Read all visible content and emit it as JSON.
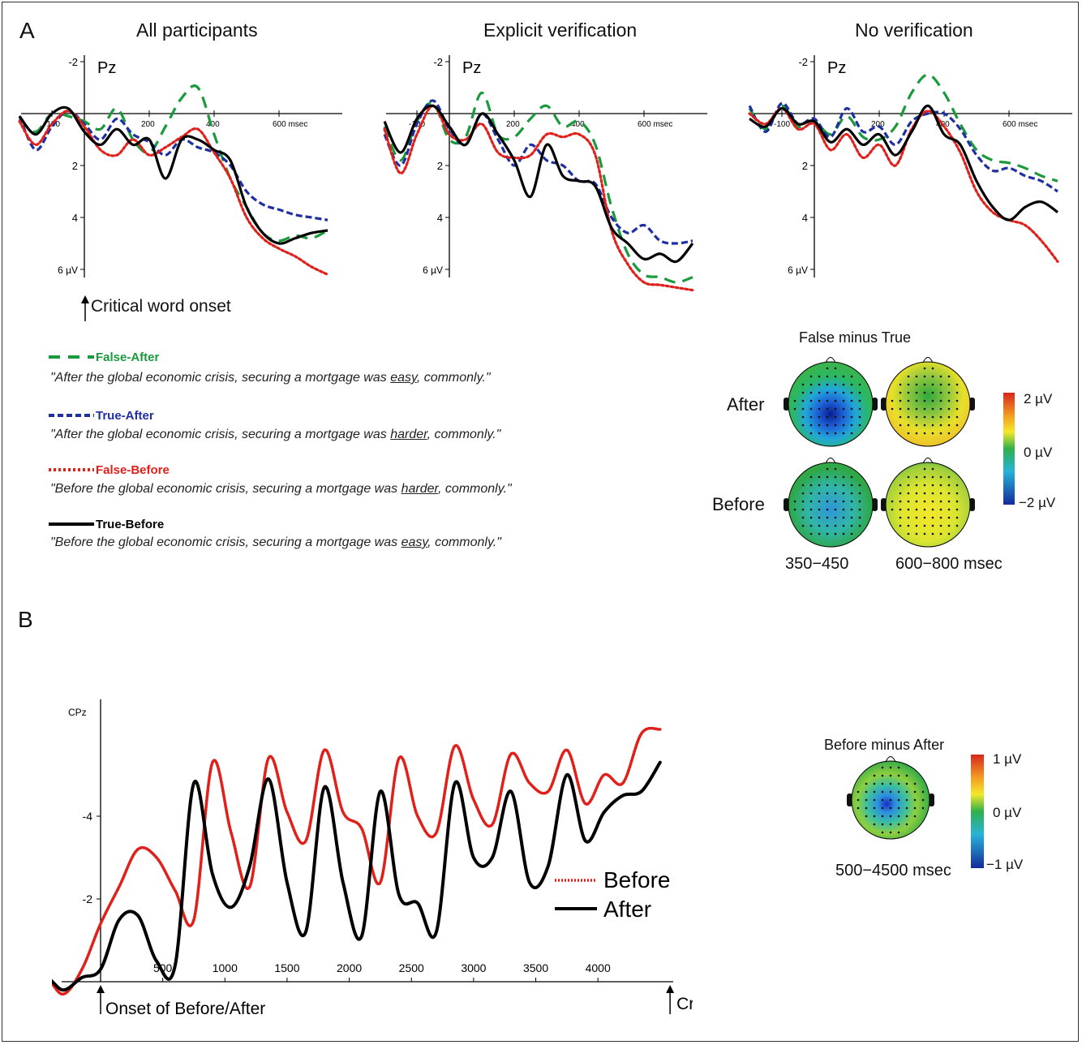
{
  "panel_a": {
    "letter": "A",
    "columns": [
      "All participants",
      "Explicit verification",
      "No verification"
    ],
    "electrode": "Pz",
    "y_ticks": [
      "-2",
      "2",
      "4",
      "6 µV"
    ],
    "x_ticks": [
      "-100",
      "200",
      "400",
      "600 msec"
    ],
    "onset_label": "Critical word onset"
  },
  "legend_a": [
    {
      "name": "False-After",
      "color": "#1a9a3c",
      "dash": "dashed-long",
      "sentence": {
        "before": "\"After the global economic crisis, securing a mortgage was ",
        "word": "easy",
        "after": ", commonly.\""
      }
    },
    {
      "name": "True-After",
      "color": "#1f2fa0",
      "dash": "dashed",
      "sentence": {
        "before": "\"After the global economic crisis, securing a mortgage was ",
        "word": "harder",
        "after": ", commonly.\""
      }
    },
    {
      "name": "False-Before",
      "color": "#e0201b",
      "dash": "dotted",
      "sentence": {
        "before": "\"Before the global economic crisis, securing a mortgage was ",
        "word": "harder",
        "after": ", commonly.\""
      }
    },
    {
      "name": "True-Before",
      "color": "#000000",
      "dash": "solid",
      "sentence": {
        "before": "\"Before the global economic crisis, securing a mortgage was ",
        "word": "easy",
        "after": ", commonly.\""
      }
    }
  ],
  "topo_a": {
    "title": "False minus True",
    "rows": [
      "After",
      "Before"
    ],
    "windows": [
      "350−450",
      "600−800 msec"
    ],
    "scale": [
      "2 µV",
      "0 µV",
      "−2 µV"
    ]
  },
  "panel_b": {
    "letter": "B",
    "electrode": "CPz",
    "y_ticks": [
      "-4",
      "-2"
    ],
    "x_ticks": [
      "500",
      "1000",
      "1500",
      "2000",
      "2500",
      "3000",
      "3500",
      "4000"
    ],
    "onset_label": "Onset of Before/After",
    "critical_label": "Critical word onset",
    "legend": [
      "Before",
      "After"
    ]
  },
  "topo_b": {
    "title": "Before minus After",
    "window": "500−4500 msec",
    "scale": [
      "1 µV",
      "0 µV",
      "−1 µV"
    ]
  },
  "colors": {
    "false_after": "#1a9a3c",
    "true_after": "#1f2fa0",
    "false_before": "#e0201b",
    "true_before": "#000000"
  },
  "chart_data": [
    {
      "type": "line",
      "title": "All participants",
      "ylabel": "Pz",
      "xlim": [
        -200,
        750
      ],
      "ylim": [
        -2.5,
        6.5
      ],
      "y_inverted": true,
      "x": [
        -200,
        -150,
        -100,
        -50,
        0,
        50,
        100,
        150,
        200,
        250,
        300,
        350,
        400,
        450,
        500,
        550,
        600,
        650,
        700,
        750
      ],
      "series": [
        {
          "name": "False-After",
          "values": [
            0.2,
            0.7,
            0.0,
            0.1,
            0.3,
            0.6,
            -0.2,
            1.0,
            1.5,
            0.5,
            -0.6,
            -1.0,
            0.8,
            2.5,
            3.6,
            4.6,
            4.9,
            4.7,
            4.8,
            4.5
          ]
        },
        {
          "name": "True-After",
          "values": [
            0.1,
            1.4,
            0.5,
            -0.1,
            0.4,
            1.0,
            0.2,
            0.8,
            1.1,
            1.6,
            1.0,
            1.3,
            1.5,
            2.0,
            3.0,
            3.5,
            3.7,
            3.9,
            4.0,
            4.1
          ]
        },
        {
          "name": "False-Before",
          "values": [
            0.3,
            1.2,
            0.4,
            -0.1,
            0.5,
            1.4,
            1.6,
            1.0,
            1.6,
            1.3,
            0.9,
            0.6,
            1.5,
            2.5,
            4.0,
            4.8,
            5.2,
            5.5,
            5.9,
            6.2
          ]
        },
        {
          "name": "True-Before",
          "values": [
            0.1,
            0.8,
            0.0,
            -0.2,
            0.7,
            1.2,
            0.6,
            1.2,
            1.0,
            2.5,
            1.0,
            1.0,
            1.4,
            1.8,
            3.6,
            4.6,
            5.0,
            4.8,
            4.6,
            4.5
          ]
        }
      ]
    },
    {
      "type": "line",
      "title": "Explicit verification",
      "ylabel": "Pz",
      "xlim": [
        -200,
        750
      ],
      "ylim": [
        -2.5,
        6.5
      ],
      "y_inverted": true,
      "x": [
        -200,
        -150,
        -100,
        -50,
        0,
        50,
        100,
        150,
        200,
        250,
        300,
        350,
        400,
        450,
        500,
        550,
        600,
        650,
        700,
        750
      ],
      "series": [
        {
          "name": "False-After",
          "values": [
            0.5,
            1.8,
            0.3,
            -0.4,
            1.0,
            0.9,
            -0.8,
            0.8,
            0.9,
            0.2,
            -0.3,
            0.5,
            0.3,
            1.2,
            3.6,
            5.4,
            6.2,
            6.3,
            6.5,
            6.3
          ]
        },
        {
          "name": "True-After",
          "values": [
            0.8,
            2.0,
            0.4,
            -0.5,
            0.6,
            1.2,
            0.0,
            1.0,
            2.0,
            1.2,
            1.8,
            2.0,
            2.6,
            2.7,
            4.0,
            4.6,
            4.3,
            4.9,
            5.0,
            4.9
          ]
        },
        {
          "name": "False-Before",
          "values": [
            0.6,
            2.3,
            0.8,
            -0.3,
            0.8,
            1.0,
            0.4,
            1.5,
            1.7,
            1.6,
            0.8,
            0.9,
            0.8,
            1.6,
            4.5,
            5.8,
            6.5,
            6.6,
            6.7,
            6.8
          ]
        },
        {
          "name": "True-Before",
          "values": [
            0.3,
            1.5,
            0.2,
            -0.3,
            0.5,
            1.2,
            0.0,
            0.8,
            1.8,
            3.2,
            1.2,
            2.4,
            2.6,
            2.8,
            4.4,
            5.0,
            5.6,
            5.4,
            5.7,
            5.0
          ]
        }
      ]
    },
    {
      "type": "line",
      "title": "No verification",
      "ylabel": "Pz",
      "xlim": [
        -200,
        750
      ],
      "ylim": [
        -2.5,
        6.5
      ],
      "y_inverted": true,
      "x": [
        -200,
        -150,
        -100,
        -50,
        0,
        50,
        100,
        150,
        200,
        250,
        300,
        350,
        400,
        450,
        500,
        550,
        600,
        650,
        700,
        750
      ],
      "series": [
        {
          "name": "False-After",
          "values": [
            -0.2,
            0.6,
            -0.3,
            0.5,
            0.3,
            0.8,
            0.1,
            0.9,
            1.0,
            0.5,
            -0.8,
            -1.5,
            -0.8,
            0.4,
            1.4,
            1.8,
            1.9,
            2.1,
            2.4,
            2.6
          ]
        },
        {
          "name": "True-After",
          "values": [
            -0.3,
            0.7,
            -0.4,
            0.4,
            0.2,
            0.9,
            -0.2,
            0.7,
            0.5,
            1.2,
            0.3,
            0.0,
            0.0,
            0.6,
            1.6,
            2.2,
            2.1,
            2.4,
            2.6,
            3.0
          ]
        },
        {
          "name": "False-Before",
          "values": [
            0.0,
            0.4,
            -0.2,
            0.6,
            0.4,
            1.4,
            0.8,
            1.7,
            1.2,
            2.0,
            0.6,
            -0.1,
            0.5,
            1.5,
            3.0,
            3.8,
            4.1,
            4.3,
            4.9,
            5.7
          ]
        },
        {
          "name": "True-Before",
          "values": [
            0.2,
            0.5,
            -0.2,
            0.4,
            0.3,
            1.1,
            0.6,
            1.2,
            0.8,
            1.6,
            0.7,
            -0.3,
            0.8,
            1.2,
            2.6,
            3.6,
            4.1,
            3.6,
            3.4,
            3.8
          ]
        }
      ]
    },
    {
      "type": "line",
      "title": "",
      "ylabel": "CPz",
      "xlim": [
        -600,
        4500
      ],
      "ylim": [
        0.5,
        -6.0
      ],
      "y_inverted": true,
      "x": [
        -600,
        -450,
        -300,
        -150,
        0,
        150,
        300,
        450,
        600,
        750,
        900,
        1050,
        1200,
        1350,
        1500,
        1650,
        1800,
        1950,
        2100,
        2250,
        2400,
        2550,
        2700,
        2850,
        3000,
        3150,
        3300,
        3450,
        3600,
        3750,
        3900,
        4050,
        4200,
        4350,
        4500
      ],
      "series": [
        {
          "name": "Before",
          "values": [
            0.4,
            -0.1,
            0.3,
            -0.3,
            -1.4,
            -2.3,
            -3.2,
            -3.0,
            -2.2,
            -1.5,
            -5.3,
            -3.6,
            -2.3,
            -5.4,
            -4.1,
            -3.4,
            -5.6,
            -4.1,
            -3.7,
            -2.4,
            -5.4,
            -4.0,
            -3.6,
            -5.7,
            -4.4,
            -3.8,
            -5.5,
            -4.8,
            -4.6,
            -5.6,
            -4.3,
            -5.0,
            -4.8,
            -6.0,
            -6.1
          ]
        },
        {
          "name": "After",
          "values": [
            0.4,
            -0.1,
            0.2,
            -0.1,
            -0.3,
            -1.5,
            -1.6,
            -0.5,
            -0.4,
            -4.8,
            -2.6,
            -1.8,
            -2.8,
            -4.9,
            -2.4,
            -1.2,
            -4.7,
            -2.4,
            -1.1,
            -4.6,
            -2.1,
            -1.9,
            -1.2,
            -4.8,
            -3.0,
            -3.0,
            -4.6,
            -2.4,
            -2.8,
            -5.0,
            -3.4,
            -4.1,
            -4.5,
            -4.6,
            -5.3
          ]
        }
      ]
    }
  ]
}
